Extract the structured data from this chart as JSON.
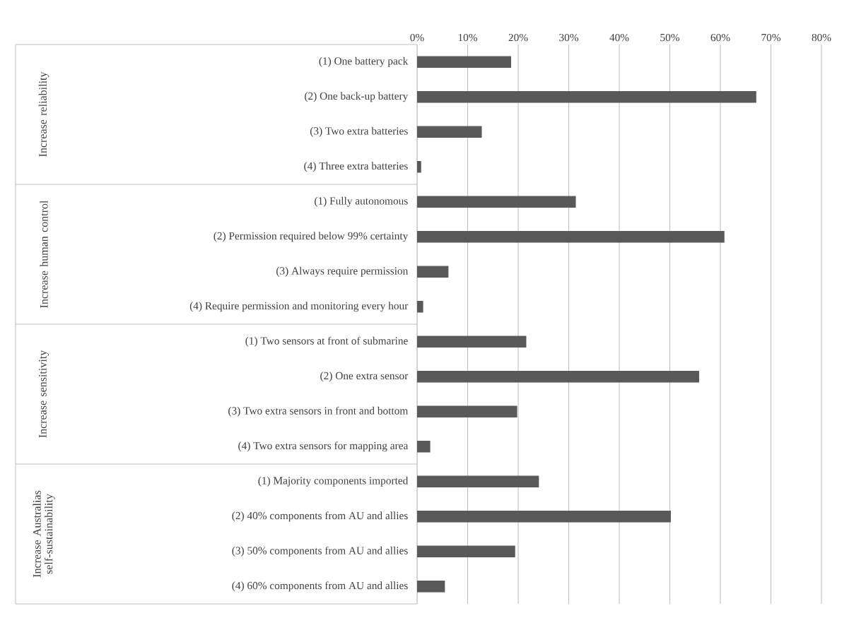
{
  "chart_data": {
    "type": "bar",
    "orientation": "horizontal",
    "categories": [
      "(1) One battery pack",
      "(2) One back-up battery",
      "(3) Two extra batteries",
      "(4) Three extra batteries",
      "(1) Fully autonomous",
      "(2) Permission required below 99% certainty",
      "(3) Always require permission",
      "(4) Require permission and monitoring every hour",
      "(1) Two sensors at front of submarine",
      "(2) One extra sensor",
      "(3) Two extra sensors in front and bottom",
      "(4) Two extra sensors for mapping area",
      "(1) Majority components imported",
      "(2) 40% components from AU and allies",
      "(3) 50% components from AU and allies",
      "(4) 60% components from AU and allies"
    ],
    "values": [
      18.6,
      67.1,
      12.8,
      0.8,
      31.4,
      60.8,
      6.2,
      1.2,
      21.6,
      55.8,
      19.8,
      2.6,
      24.1,
      50.2,
      19.4,
      5.5
    ],
    "color": "#595959",
    "xlim": [
      0,
      80
    ],
    "xticks": [
      {
        "value": 0,
        "label": "0%"
      },
      {
        "value": 10,
        "label": "10%"
      },
      {
        "value": 20,
        "label": "20%"
      },
      {
        "value": 30,
        "label": "30%"
      },
      {
        "value": 40,
        "label": "40%"
      },
      {
        "value": 50,
        "label": "50%"
      },
      {
        "value": 60,
        "label": "60%"
      },
      {
        "value": 70,
        "label": "70%"
      },
      {
        "value": 80,
        "label": "80%"
      }
    ],
    "grid": "x",
    "annotations": [
      "Increase reliability",
      "Increase human control",
      "Increase sensitivity",
      "Increase Australias self-sustainability"
    ]
  }
}
